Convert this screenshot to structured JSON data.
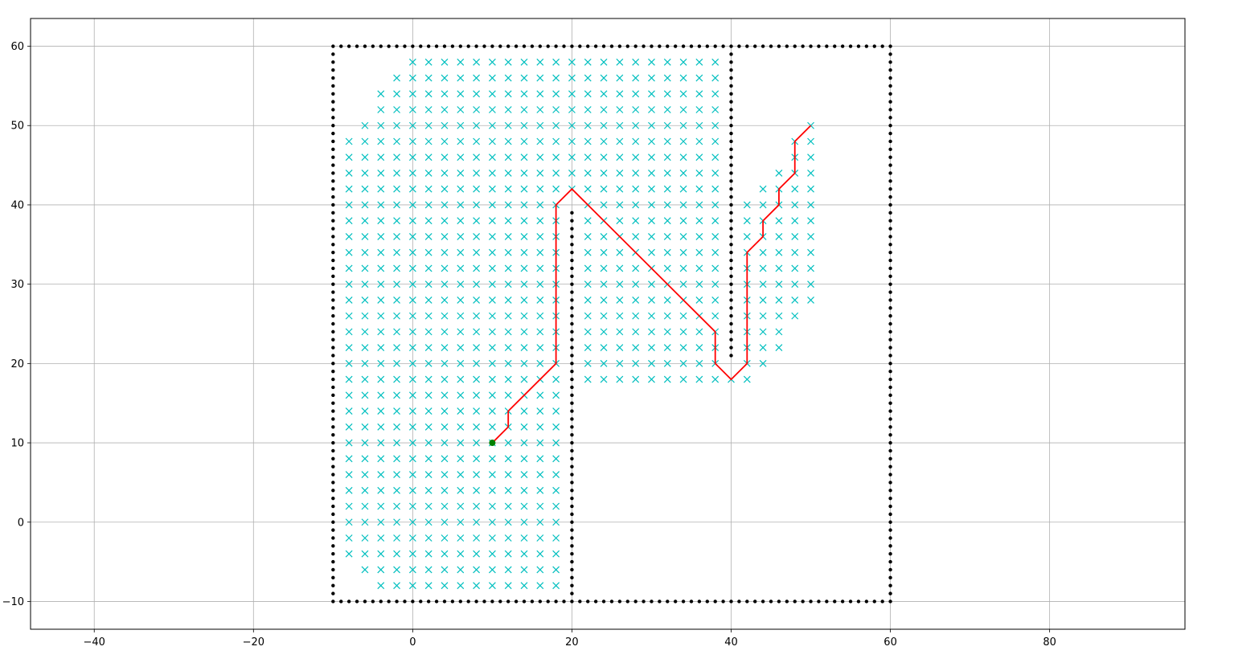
{
  "chart_data": {
    "type": "scatter",
    "title": "",
    "xlabel": "",
    "ylabel": "",
    "xlim": [
      -48,
      97
    ],
    "ylim": [
      -13.5,
      63.5
    ],
    "grid": true,
    "x_ticks": [
      -40,
      -20,
      0,
      20,
      40,
      60,
      80
    ],
    "y_ticks": [
      -10,
      0,
      10,
      20,
      30,
      40,
      50,
      60
    ],
    "x_tick_labels": [
      "−40",
      "−20",
      "0",
      "20",
      "40",
      "60",
      "80"
    ],
    "y_tick_labels": [
      "−10",
      "0",
      "10",
      "20",
      "30",
      "40",
      "50",
      "60"
    ],
    "colors": {
      "obstacle": "#000000",
      "visited": "#00bfbf",
      "path": "#ff0000",
      "start": "#008000",
      "grid": "#b0b0b0"
    },
    "obstacles": {
      "marker": "point",
      "boundary_x_range": [
        -10,
        60
      ],
      "boundary_y_range": [
        -10,
        60
      ],
      "walls": [
        {
          "x": 20,
          "y_range": [
            -10,
            39
          ]
        },
        {
          "x": 40,
          "y_range": [
            21,
            60
          ]
        }
      ]
    },
    "visited": {
      "marker": "x",
      "rows": [
        {
          "y": 58,
          "x_range": [
            0,
            38
          ]
        },
        {
          "y": 56,
          "x_range": [
            -2,
            38
          ]
        },
        {
          "y": 54,
          "x_range": [
            -4,
            38
          ]
        },
        {
          "y": 52,
          "x_range": [
            -4,
            38
          ]
        },
        {
          "y": 50,
          "x_range": [
            -6,
            38
          ],
          "extra_x": [
            50
          ]
        },
        {
          "y": 48,
          "x_range": [
            -8,
            38
          ],
          "extra_x": [
            48,
            50
          ]
        },
        {
          "y": 46,
          "x_range": [
            -8,
            38
          ],
          "extra_x": [
            48,
            50
          ]
        },
        {
          "y": 44,
          "x_range": [
            -8,
            38
          ],
          "extra_x": [
            46,
            48,
            50
          ]
        },
        {
          "y": 42,
          "x_range": [
            -8,
            38
          ],
          "extra_x": [
            44,
            46,
            48,
            50
          ]
        },
        {
          "y": 40,
          "x_range": [
            -8,
            18
          ],
          "x_range2": [
            22,
            38
          ],
          "extra_x": [
            42,
            44,
            46,
            48,
            50
          ]
        },
        {
          "y": 38,
          "x_range": [
            -8,
            18
          ],
          "x_range2": [
            22,
            38
          ],
          "extra_x": [
            42,
            44,
            46,
            48,
            50
          ]
        },
        {
          "y": 36,
          "x_range": [
            -8,
            18
          ],
          "x_range2": [
            22,
            38
          ],
          "extra_x": [
            42,
            44,
            46,
            48,
            50
          ]
        },
        {
          "y": 34,
          "x_range": [
            -8,
            18
          ],
          "x_range2": [
            22,
            38
          ],
          "extra_x": [
            42,
            44,
            46,
            48,
            50
          ]
        },
        {
          "y": 32,
          "x_range": [
            -8,
            18
          ],
          "x_range2": [
            22,
            38
          ],
          "extra_x": [
            42,
            44,
            46,
            48,
            50
          ]
        },
        {
          "y": 30,
          "x_range": [
            -8,
            18
          ],
          "x_range2": [
            22,
            38
          ],
          "extra_x": [
            42,
            44,
            46,
            48,
            50
          ]
        },
        {
          "y": 28,
          "x_range": [
            -8,
            18
          ],
          "x_range2": [
            22,
            38
          ],
          "extra_x": [
            42,
            44,
            46,
            48,
            50
          ]
        },
        {
          "y": 26,
          "x_range": [
            -8,
            18
          ],
          "x_range2": [
            22,
            38
          ],
          "extra_x": [
            42,
            44,
            46,
            48
          ]
        },
        {
          "y": 24,
          "x_range": [
            -8,
            18
          ],
          "x_range2": [
            22,
            38
          ],
          "extra_x": [
            42,
            44,
            46
          ]
        },
        {
          "y": 22,
          "x_range": [
            -8,
            18
          ],
          "x_range2": [
            22,
            38
          ],
          "extra_x": [
            42,
            44,
            46
          ]
        },
        {
          "y": 20,
          "x_range": [
            -8,
            18
          ],
          "x_range2": [
            22,
            38
          ],
          "extra_x": [
            42,
            44
          ]
        },
        {
          "y": 18,
          "x_range": [
            -8,
            18
          ],
          "x_range2": [
            22,
            42
          ]
        },
        {
          "y": 16,
          "x_range": [
            -8,
            18
          ]
        },
        {
          "y": 14,
          "x_range": [
            -8,
            18
          ]
        },
        {
          "y": 12,
          "x_range": [
            -8,
            18
          ]
        },
        {
          "y": 10,
          "x_range": [
            -8,
            18
          ]
        },
        {
          "y": 8,
          "x_range": [
            -8,
            18
          ]
        },
        {
          "y": 6,
          "x_range": [
            -8,
            18
          ]
        },
        {
          "y": 4,
          "x_range": [
            -8,
            18
          ]
        },
        {
          "y": 2,
          "x_range": [
            -8,
            18
          ]
        },
        {
          "y": 0,
          "x_range": [
            -8,
            18
          ]
        },
        {
          "y": -2,
          "x_range": [
            -8,
            18
          ]
        },
        {
          "y": -4,
          "x_range": [
            -8,
            18
          ]
        },
        {
          "y": -6,
          "x_range": [
            -6,
            18
          ]
        },
        {
          "y": -8,
          "x_range": [
            -4,
            18
          ]
        }
      ]
    },
    "path": {
      "x": [
        10,
        12,
        12,
        18,
        18,
        20,
        38,
        38,
        40,
        42,
        42,
        44,
        44,
        46,
        46,
        48,
        48,
        50
      ],
      "y": [
        10,
        12,
        14,
        20,
        40,
        42,
        24,
        20,
        18,
        20,
        34,
        36,
        38,
        40,
        42,
        44,
        48,
        50
      ]
    },
    "start": {
      "x": 10,
      "y": 10
    }
  }
}
